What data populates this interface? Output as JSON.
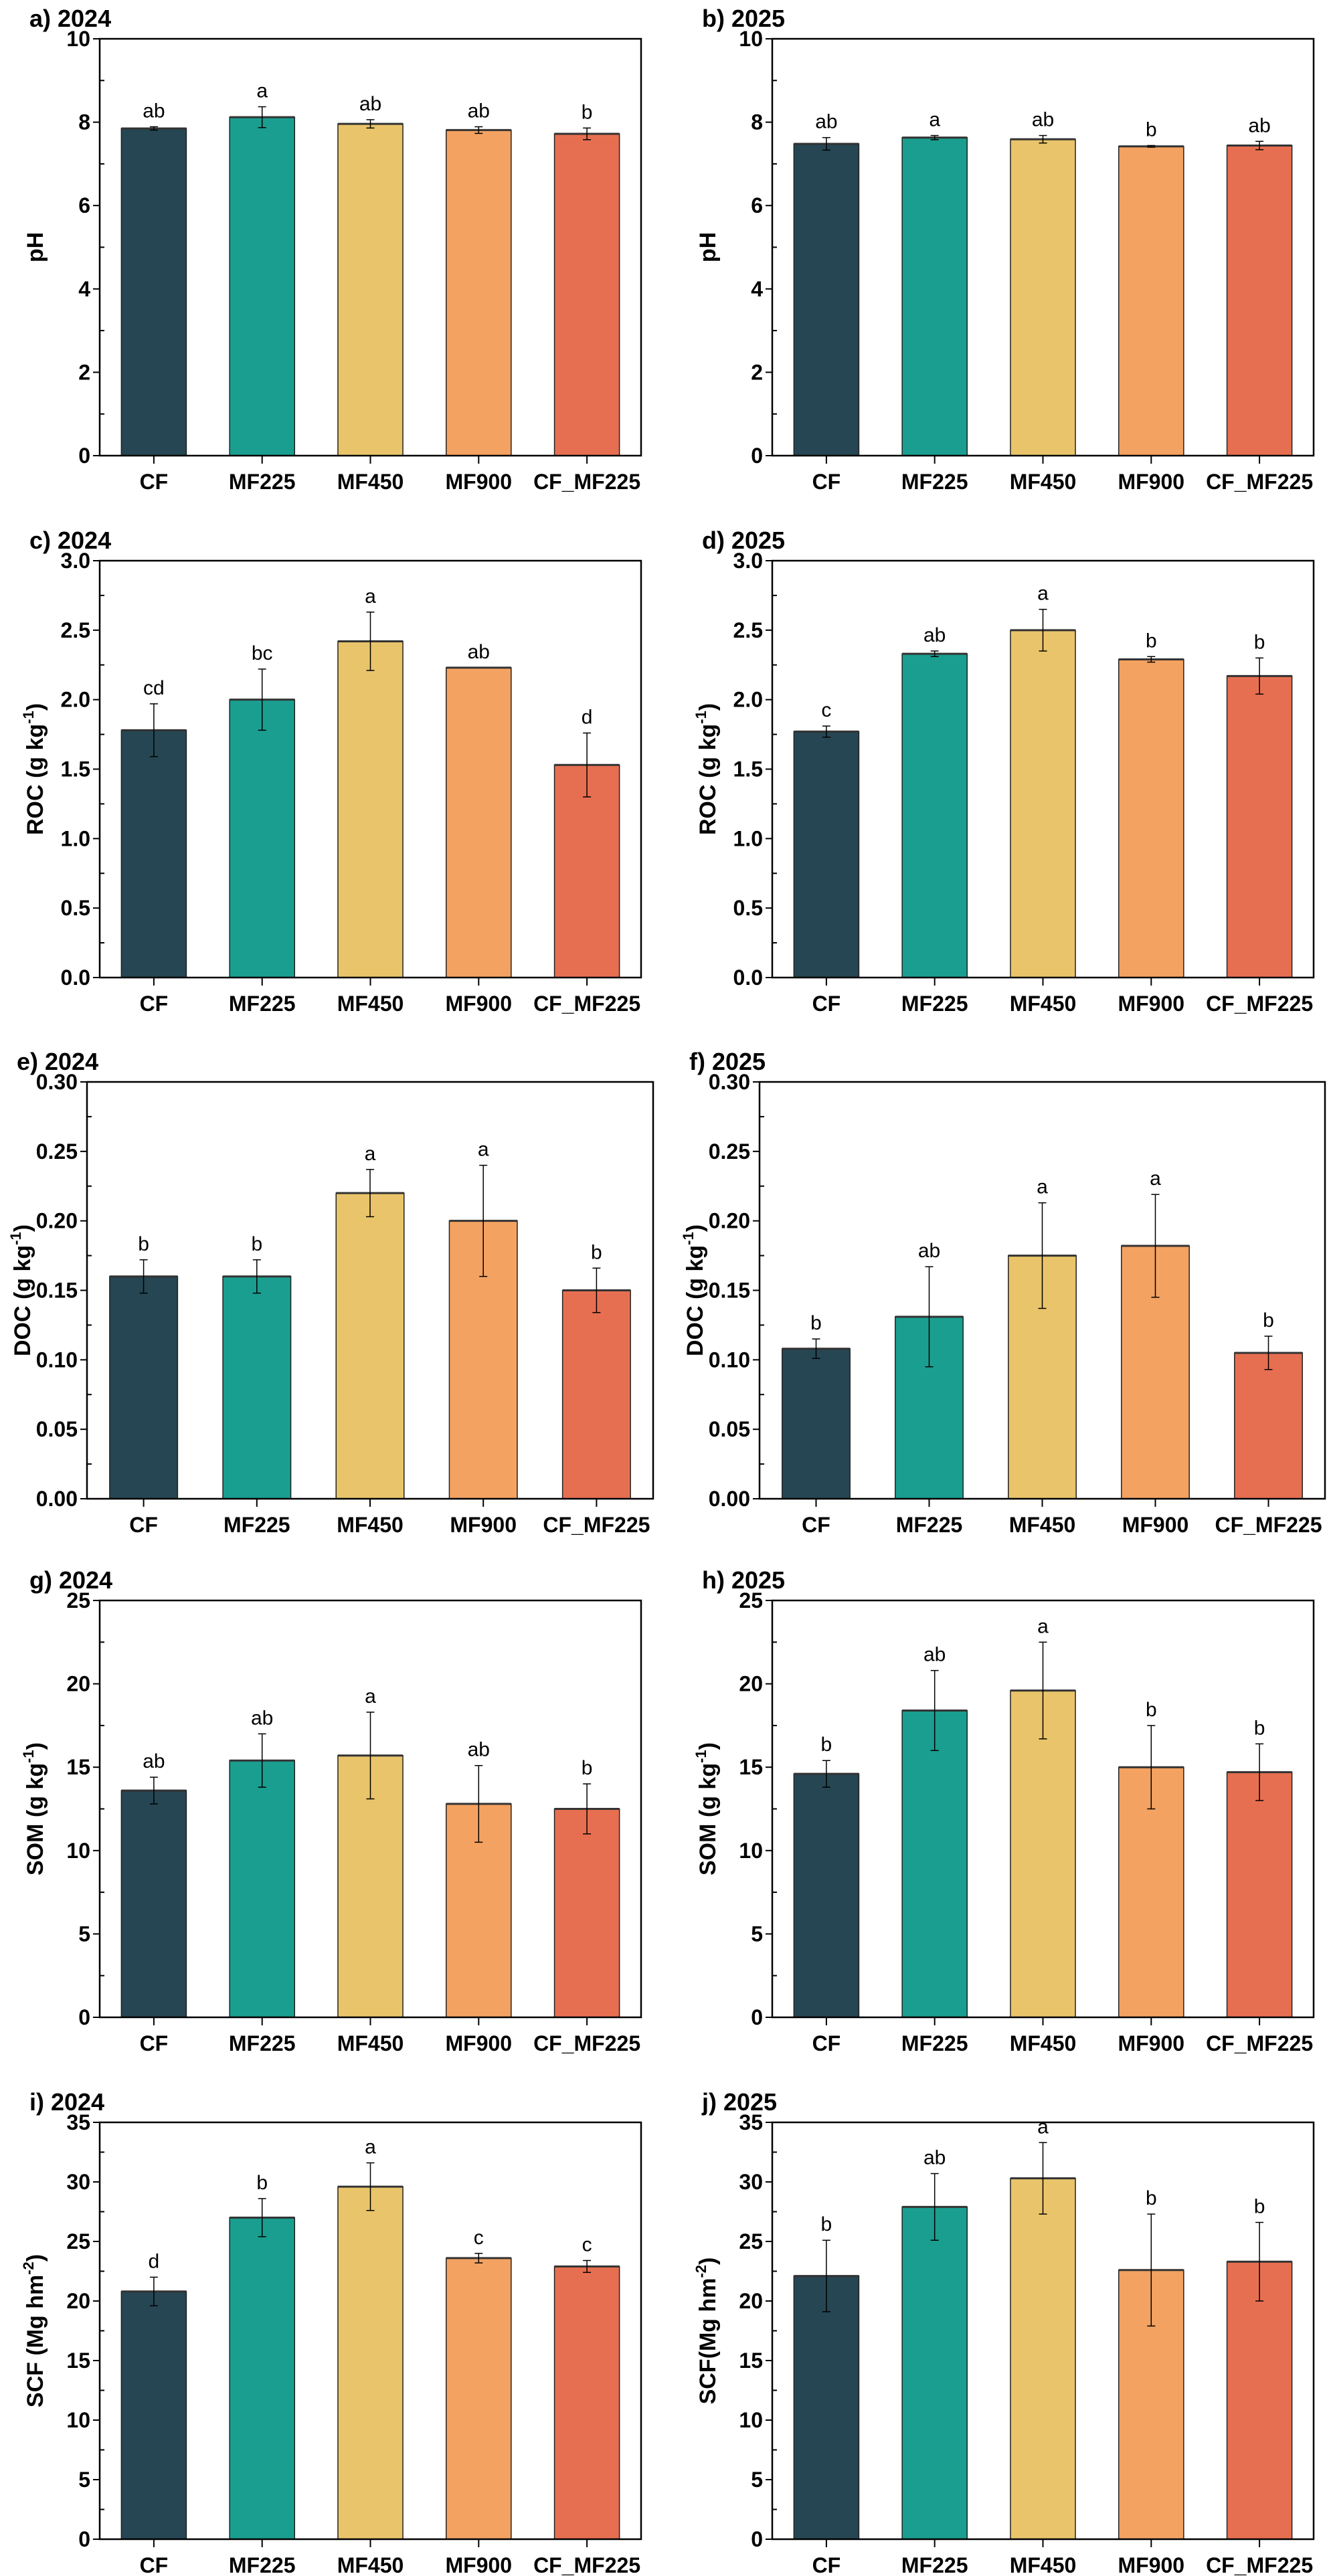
{
  "chart_data": [
    {
      "type": "bar",
      "title": "a) 2024",
      "ylabel": "pH",
      "ylabel_sup": "",
      "ylabel_end": "",
      "ylim": [
        0,
        10
      ],
      "yticks": [
        "0",
        "2",
        "4",
        "6",
        "8",
        "10"
      ],
      "categories": [
        "CF",
        "MF225",
        "MF450",
        "MF900",
        "CF_MF225"
      ],
      "values": [
        7.85,
        8.12,
        7.96,
        7.81,
        7.72
      ],
      "errors": [
        0.04,
        0.25,
        0.1,
        0.08,
        0.14
      ],
      "letters": [
        "ab",
        "a",
        "ab",
        "ab",
        "b"
      ]
    },
    {
      "type": "bar",
      "title": "b) 2025",
      "ylabel": "pH",
      "ylabel_sup": "",
      "ylabel_end": "",
      "ylim": [
        0,
        10
      ],
      "yticks": [
        "0",
        "2",
        "4",
        "6",
        "8",
        "10"
      ],
      "categories": [
        "CF",
        "MF225",
        "MF450",
        "MF900",
        "CF_MF225"
      ],
      "values": [
        7.48,
        7.63,
        7.59,
        7.42,
        7.44
      ],
      "errors": [
        0.15,
        0.05,
        0.09,
        0.02,
        0.1
      ],
      "letters": [
        "ab",
        "a",
        "ab",
        "b",
        "ab"
      ]
    },
    {
      "type": "bar",
      "title": "c) 2024",
      "ylabel": "ROC (g kg",
      "ylabel_sup": "-1",
      "ylabel_end": ")",
      "ylim": [
        0,
        3
      ],
      "yticks": [
        "0.0",
        "0.5",
        "1.0",
        "1.5",
        "2.0",
        "2.5",
        "3.0"
      ],
      "categories": [
        "CF",
        "MF225",
        "MF450",
        "MF900",
        "CF_MF225"
      ],
      "values": [
        1.78,
        2.0,
        2.42,
        2.23,
        1.53
      ],
      "errors": [
        0.19,
        0.22,
        0.21,
        0.0,
        0.23
      ],
      "letters": [
        "cd",
        "bc",
        "a",
        "ab",
        "d"
      ]
    },
    {
      "type": "bar",
      "title": "d) 2025",
      "ylabel": "ROC (g kg",
      "ylabel_sup": "-1",
      "ylabel_end": ")",
      "ylim": [
        0,
        3
      ],
      "yticks": [
        "0.0",
        "0.5",
        "1.0",
        "1.5",
        "2.0",
        "2.5",
        "3.0"
      ],
      "categories": [
        "CF",
        "MF225",
        "MF450",
        "MF900",
        "CF_MF225"
      ],
      "values": [
        1.77,
        2.33,
        2.5,
        2.29,
        2.17
      ],
      "errors": [
        0.04,
        0.02,
        0.15,
        0.02,
        0.13
      ],
      "letters": [
        "c",
        "ab",
        "a",
        "b",
        "b"
      ]
    },
    {
      "type": "bar",
      "title": "e) 2024",
      "ylabel": "DOC (g kg",
      "ylabel_sup": "-1",
      "ylabel_end": ")",
      "ylim": [
        0,
        0.3
      ],
      "yticks": [
        "0.00",
        "0.05",
        "0.10",
        "0.15",
        "0.20",
        "0.25",
        "0.30"
      ],
      "categories": [
        "CF",
        "MF225",
        "MF450",
        "MF900",
        "CF_MF225"
      ],
      "values": [
        0.16,
        0.16,
        0.22,
        0.2,
        0.15
      ],
      "errors": [
        0.012,
        0.012,
        0.017,
        0.04,
        0.016
      ],
      "letters": [
        "b",
        "b",
        "a",
        "a",
        "b"
      ]
    },
    {
      "type": "bar",
      "title": "f) 2025",
      "ylabel": "DOC (g kg",
      "ylabel_sup": "-1",
      "ylabel_end": ")",
      "ylim": [
        0,
        0.3
      ],
      "yticks": [
        "0.00",
        "0.05",
        "0.10",
        "0.15",
        "0.20",
        "0.25",
        "0.30"
      ],
      "categories": [
        "CF",
        "MF225",
        "MF450",
        "MF900",
        "CF_MF225"
      ],
      "values": [
        0.108,
        0.131,
        0.175,
        0.182,
        0.105
      ],
      "errors": [
        0.007,
        0.036,
        0.038,
        0.037,
        0.012
      ],
      "letters": [
        "b",
        "ab",
        "a",
        "a",
        "b"
      ]
    },
    {
      "type": "bar",
      "title": "g) 2024",
      "ylabel": "SOM (g kg",
      "ylabel_sup": "-1",
      "ylabel_end": ")",
      "ylim": [
        0,
        25
      ],
      "yticks": [
        "0",
        "5",
        "10",
        "15",
        "20",
        "25"
      ],
      "categories": [
        "CF",
        "MF225",
        "MF450",
        "MF900",
        "CF_MF225"
      ],
      "values": [
        13.6,
        15.4,
        15.7,
        12.8,
        12.5
      ],
      "errors": [
        0.8,
        1.6,
        2.6,
        2.3,
        1.5
      ],
      "letters": [
        "ab",
        "ab",
        "a",
        "ab",
        "b"
      ]
    },
    {
      "type": "bar",
      "title": "h) 2025",
      "ylabel": "SOM (g kg",
      "ylabel_sup": "-1",
      "ylabel_end": ")",
      "ylim": [
        0,
        25
      ],
      "yticks": [
        "0",
        "5",
        "10",
        "15",
        "20",
        "25"
      ],
      "categories": [
        "CF",
        "MF225",
        "MF450",
        "MF900",
        "CF_MF225"
      ],
      "values": [
        14.6,
        18.4,
        19.6,
        15.0,
        14.7
      ],
      "errors": [
        0.8,
        2.4,
        2.9,
        2.5,
        1.7
      ],
      "letters": [
        "b",
        "ab",
        "a",
        "b",
        "b"
      ]
    },
    {
      "type": "bar",
      "title": "i) 2024",
      "ylabel": "SCF (Mg hm",
      "ylabel_sup": "-2",
      "ylabel_end": ")",
      "ylim": [
        0,
        35
      ],
      "yticks": [
        "0",
        "5",
        "10",
        "15",
        "20",
        "25",
        "30",
        "35"
      ],
      "categories": [
        "CF",
        "MF225",
        "MF450",
        "MF900",
        "CF_MF225"
      ],
      "values": [
        20.8,
        27.0,
        29.6,
        23.6,
        22.9
      ],
      "errors": [
        1.2,
        1.6,
        2.0,
        0.4,
        0.5
      ],
      "letters": [
        "d",
        "b",
        "a",
        "c",
        "c"
      ]
    },
    {
      "type": "bar",
      "title": "j) 2025",
      "ylabel": "SCF(Mg hm",
      "ylabel_sup": "-2",
      "ylabel_end": ")",
      "ylim": [
        0,
        35
      ],
      "yticks": [
        "0",
        "5",
        "10",
        "15",
        "20",
        "25",
        "30",
        "35"
      ],
      "categories": [
        "CF",
        "MF225",
        "MF450",
        "MF900",
        "CF_MF225"
      ],
      "values": [
        22.1,
        27.9,
        30.3,
        22.6,
        23.3
      ],
      "errors": [
        3.0,
        2.8,
        3.0,
        4.7,
        3.3
      ],
      "letters": [
        "b",
        "ab",
        "a",
        "b",
        "b"
      ]
    }
  ],
  "colors": [
    "#264653",
    "#1a9e8f",
    "#e9c46a",
    "#f4a261",
    "#e76f51"
  ]
}
